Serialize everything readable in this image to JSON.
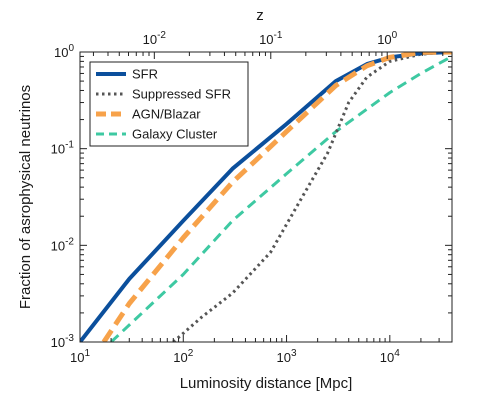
{
  "chart_data": {
    "type": "line",
    "title": "",
    "xlabel": "Luminosity distance [Mpc]",
    "ylabel": "Fraction of asrophysical neutrinos",
    "top_xlabel": "z",
    "x_scale": "log",
    "y_scale": "log",
    "xlim": [
      10,
      40000
    ],
    "ylim": [
      0.001,
      1
    ],
    "top_xlim": [
      0.0023,
      3.6
    ],
    "grid": false,
    "legend_position": "top-left",
    "x_ticks": [
      {
        "value": 10,
        "base": "10",
        "exp": "1"
      },
      {
        "value": 100,
        "base": "10",
        "exp": "2"
      },
      {
        "value": 1000,
        "base": "10",
        "exp": "3"
      },
      {
        "value": 10000,
        "base": "10",
        "exp": "4"
      }
    ],
    "y_ticks": [
      {
        "value": 0.001,
        "base": "10",
        "exp": "-3"
      },
      {
        "value": 0.01,
        "base": "10",
        "exp": "-2"
      },
      {
        "value": 0.1,
        "base": "10",
        "exp": "-1"
      },
      {
        "value": 1,
        "base": "10",
        "exp": "0"
      }
    ],
    "top_ticks": [
      {
        "value": 0.01,
        "base": "10",
        "exp": "-2"
      },
      {
        "value": 0.1,
        "base": "10",
        "exp": "-1"
      },
      {
        "value": 1,
        "base": "10",
        "exp": "0"
      }
    ],
    "series": [
      {
        "name": "SFR",
        "color": "#0b4f9c",
        "style": "solid",
        "x": [
          10,
          30,
          100,
          300,
          1000,
          3000,
          6000,
          10000,
          20000,
          40000
        ],
        "y": [
          0.001,
          0.0045,
          0.018,
          0.062,
          0.18,
          0.5,
          0.75,
          0.88,
          0.97,
          1.0
        ]
      },
      {
        "name": "Suppressed SFR",
        "color": "#555555",
        "style": "dotted",
        "x": [
          80,
          150,
          300,
          700,
          1500,
          2500,
          4000,
          6000,
          10000,
          20000,
          40000
        ],
        "y": [
          0.001,
          0.0018,
          0.0032,
          0.0085,
          0.035,
          0.09,
          0.3,
          0.55,
          0.8,
          0.95,
          1.0
        ]
      },
      {
        "name": "AGN/Blazar",
        "color": "#f7a24a",
        "style": "dashed",
        "x": [
          17,
          30,
          100,
          300,
          1000,
          3000,
          6000,
          10000,
          20000,
          40000
        ],
        "y": [
          0.001,
          0.0025,
          0.012,
          0.045,
          0.15,
          0.45,
          0.72,
          0.88,
          0.99,
          1.0
        ]
      },
      {
        "name": "Galaxy Cluster",
        "color": "#3ec9a2",
        "style": "dashed",
        "x": [
          20,
          50,
          100,
          300,
          1000,
          3000,
          10000,
          20000,
          40000
        ],
        "y": [
          0.001,
          0.0025,
          0.005,
          0.018,
          0.055,
          0.15,
          0.38,
          0.6,
          0.9
        ]
      }
    ]
  }
}
